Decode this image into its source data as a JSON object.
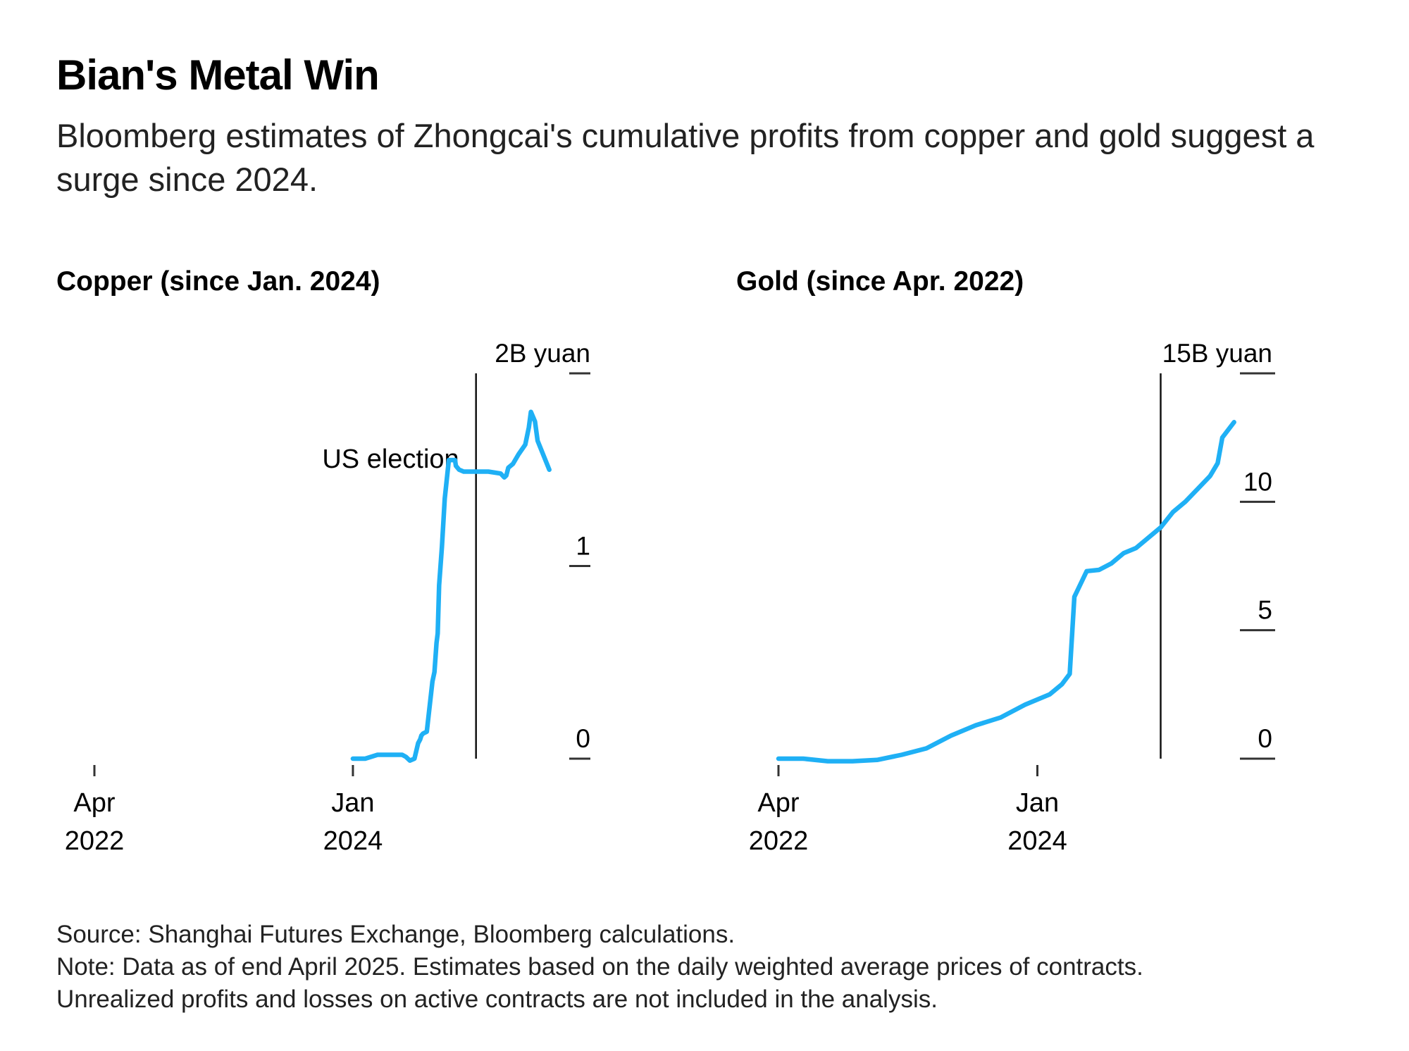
{
  "header": {
    "title": "Bian's Metal Win",
    "subtitle": "Bloomberg estimates of Zhongcai's cumulative profits from copper and gold suggest a surge since 2024."
  },
  "colors": {
    "line": "#1fb0f5",
    "axis": "#333333",
    "event_line": "#111111",
    "text": "#000000"
  },
  "chart_data": [
    {
      "type": "line",
      "title": "Copper (since Jan. 2024)",
      "x_ticks": [
        {
          "x": "2022-04",
          "line1": "Apr",
          "line2": "2022"
        },
        {
          "x": "2024-01",
          "line1": "Jan",
          "line2": "2024"
        }
      ],
      "y_ticks": [
        {
          "value": 0,
          "label": "0"
        },
        {
          "value": 1,
          "label": "1"
        },
        {
          "value": 2,
          "label": "2B yuan"
        }
      ],
      "ylim": [
        0,
        2
      ],
      "xlim": [
        "2022-04",
        "2025-06"
      ],
      "annotation": {
        "x": "2024-11",
        "label": "US election"
      },
      "series": [
        {
          "x": [
            "2024-01",
            "2024-02",
            "2024-03",
            "2024-04",
            "2024-05",
            "2024-05-10",
            "2024-05-20",
            "2024-06",
            "2024-06-10",
            "2024-06-15",
            "2024-06-18",
            "2024-06-22",
            "2024-07",
            "2024-07-15",
            "2024-07-20",
            "2024-07-25",
            "2024-07-28",
            "2024-08",
            "2024-08-08",
            "2024-08-15",
            "2024-08-25",
            "2024-09",
            "2024-09-10",
            "2024-09-12",
            "2024-09-20",
            "2024-10",
            "2024-11",
            "2024-12",
            "2025-01",
            "2025-01-10",
            "2025-01-15",
            "2025-01-20",
            "2025-02",
            "2025-02-15",
            "2025-03",
            "2025-03-10",
            "2025-03-15",
            "2025-03-25",
            "2025-04",
            "2025-04-30"
          ],
          "y": [
            0.0,
            0.0,
            0.02,
            0.02,
            0.02,
            0.01,
            -0.01,
            0.0,
            0.08,
            0.1,
            0.12,
            0.13,
            0.14,
            0.4,
            0.45,
            0.6,
            0.65,
            0.9,
            1.1,
            1.35,
            1.55,
            1.55,
            1.55,
            1.52,
            1.5,
            1.49,
            1.49,
            1.49,
            1.48,
            1.46,
            1.47,
            1.51,
            1.53,
            1.58,
            1.63,
            1.72,
            1.8,
            1.75,
            1.65,
            1.5
          ]
        }
      ]
    },
    {
      "type": "line",
      "title": "Gold (since Apr. 2022)",
      "x_ticks": [
        {
          "x": "2022-04",
          "line1": "Apr",
          "line2": "2022"
        },
        {
          "x": "2024-01",
          "line1": "Jan",
          "line2": "2024"
        }
      ],
      "y_ticks": [
        {
          "value": 0,
          "label": "0"
        },
        {
          "value": 5,
          "label": "5"
        },
        {
          "value": 10,
          "label": "10"
        },
        {
          "value": 15,
          "label": "15B yuan"
        }
      ],
      "ylim": [
        0,
        15
      ],
      "xlim": [
        "2022-04",
        "2025-06"
      ],
      "annotation": {
        "x": "2024-11",
        "label": ""
      },
      "series": [
        {
          "x": [
            "2022-04",
            "2022-06",
            "2022-08",
            "2022-10",
            "2022-12",
            "2023-02",
            "2023-04",
            "2023-06",
            "2023-08",
            "2023-10",
            "2023-12",
            "2024-02",
            "2024-03",
            "2024-03-20",
            "2024-04",
            "2024-05",
            "2024-06",
            "2024-07",
            "2024-08",
            "2024-09",
            "2024-10",
            "2024-11",
            "2024-12",
            "2025-01",
            "2025-02",
            "2025-03",
            "2025-03-20",
            "2025-04",
            "2025-04-30"
          ],
          "y": [
            0.0,
            0.0,
            -0.1,
            -0.1,
            -0.05,
            0.15,
            0.4,
            0.9,
            1.3,
            1.6,
            2.1,
            2.5,
            2.9,
            3.3,
            6.3,
            7.3,
            7.35,
            7.6,
            8.0,
            8.2,
            8.6,
            9.0,
            9.6,
            10.0,
            10.5,
            11.0,
            11.5,
            12.5,
            13.1
          ]
        }
      ]
    }
  ],
  "footer": {
    "source": "Source: Shanghai Futures Exchange, Bloomberg calculations.",
    "note": "Note: Data as of end April 2025. Estimates based on the daily weighted average prices of contracts.",
    "note2": "Unrealized profits and losses on active contracts are not included in the analysis."
  }
}
